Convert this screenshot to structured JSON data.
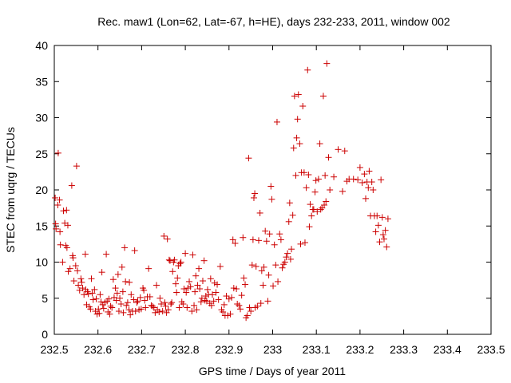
{
  "chart_data": {
    "type": "scatter",
    "title": "Rec. maw1 (Lon=62, Lat=-67, h=HE), days 232-233, 2011, window 002",
    "xlabel": "GPS time / Days of year 2011",
    "ylabel": "STEC from uqrg / TECUs",
    "xlim": [
      232.5,
      233.5
    ],
    "ylim": [
      0,
      40
    ],
    "xticks": [
      232.5,
      232.6,
      232.7,
      232.8,
      232.9,
      233,
      233.1,
      233.2,
      233.3,
      233.4,
      233.5
    ],
    "xtick_labels": [
      "232.5",
      "232.6",
      "232.7",
      "232.8",
      "232.9",
      "233",
      "233.1",
      "233.2",
      "233.3",
      "233.4",
      "233.5"
    ],
    "yticks": [
      0,
      5,
      10,
      15,
      20,
      25,
      30,
      35,
      40
    ],
    "ytick_labels": [
      "0",
      "5",
      "10",
      "15",
      "20",
      "25",
      "30",
      "35",
      "40"
    ],
    "grid": false,
    "marker": "+",
    "color": "#cc0000",
    "series": [
      {
        "name": "STEC",
        "points": [
          [
            232.502,
            18.9
          ],
          [
            232.503,
            15.3
          ],
          [
            232.504,
            14.6
          ],
          [
            232.508,
            17.9
          ],
          [
            232.509,
            25.1
          ],
          [
            232.512,
            18.6
          ],
          [
            232.513,
            14.2
          ],
          [
            232.514,
            12.4
          ],
          [
            232.519,
            10.0
          ],
          [
            232.521,
            17.1
          ],
          [
            232.524,
            15.4
          ],
          [
            232.526,
            12.3
          ],
          [
            232.528,
            17.2
          ],
          [
            232.529,
            12.0
          ],
          [
            232.531,
            15.1
          ],
          [
            232.532,
            8.7
          ],
          [
            232.536,
            9.1
          ],
          [
            232.54,
            20.6
          ],
          [
            232.542,
            10.9
          ],
          [
            232.543,
            10.6
          ],
          [
            232.545,
            7.4
          ],
          [
            232.549,
            9.5
          ],
          [
            232.551,
            23.3
          ],
          [
            232.553,
            8.8
          ],
          [
            232.555,
            6.8
          ],
          [
            232.558,
            6.1
          ],
          [
            232.561,
            7.7
          ],
          [
            232.563,
            7.2
          ],
          [
            232.565,
            6.4
          ],
          [
            232.568,
            5.5
          ],
          [
            232.571,
            11.1
          ],
          [
            232.572,
            6.2
          ],
          [
            232.574,
            4.1
          ],
          [
            232.576,
            5.9
          ],
          [
            232.578,
            5.6
          ],
          [
            232.58,
            3.8
          ],
          [
            232.583,
            3.5
          ],
          [
            232.585,
            7.7
          ],
          [
            232.587,
            5.7
          ],
          [
            232.589,
            4.8
          ],
          [
            232.592,
            6.2
          ],
          [
            232.594,
            3.2
          ],
          [
            232.596,
            4.9
          ],
          [
            232.598,
            2.8
          ],
          [
            232.601,
            3.5
          ],
          [
            232.603,
            2.9
          ],
          [
            232.605,
            5.5
          ],
          [
            232.607,
            4.5
          ],
          [
            232.609,
            8.6
          ],
          [
            232.611,
            4.1
          ],
          [
            232.613,
            3.6
          ],
          [
            232.616,
            4.4
          ],
          [
            232.619,
            11.1
          ],
          [
            232.621,
            4.6
          ],
          [
            232.623,
            3.1
          ],
          [
            232.625,
            4.9
          ],
          [
            232.627,
            2.8
          ],
          [
            232.629,
            3.9
          ],
          [
            232.632,
            3.7
          ],
          [
            232.635,
            7.6
          ],
          [
            232.637,
            5.1
          ],
          [
            232.64,
            6.4
          ],
          [
            232.642,
            4.7
          ],
          [
            232.644,
            5.7
          ],
          [
            232.646,
            8.3
          ],
          [
            232.648,
            3.2
          ],
          [
            232.65,
            5.0
          ],
          [
            232.653,
            4.2
          ],
          [
            232.655,
            9.3
          ],
          [
            232.657,
            5.9
          ],
          [
            232.658,
            3.0
          ],
          [
            232.661,
            12.0
          ],
          [
            232.663,
            7.3
          ],
          [
            232.665,
            4.0
          ],
          [
            232.668,
            4.4
          ],
          [
            232.671,
            3.4
          ],
          [
            232.672,
            7.2
          ],
          [
            232.674,
            2.7
          ],
          [
            232.676,
            5.5
          ],
          [
            232.679,
            3.2
          ],
          [
            232.682,
            4.8
          ],
          [
            232.684,
            11.6
          ],
          [
            232.686,
            3.2
          ],
          [
            232.689,
            4.4
          ],
          [
            232.691,
            4.6
          ],
          [
            232.694,
            3.4
          ],
          [
            232.697,
            5.1
          ],
          [
            232.699,
            3.5
          ],
          [
            232.703,
            6.4
          ],
          [
            232.705,
            6.1
          ],
          [
            232.707,
            4.7
          ],
          [
            232.709,
            3.7
          ],
          [
            232.713,
            5.2
          ],
          [
            232.716,
            9.1
          ],
          [
            232.719,
            5.2
          ],
          [
            232.722,
            4.0
          ],
          [
            232.725,
            3.9
          ],
          [
            232.728,
            3.7
          ],
          [
            232.731,
            3.0
          ],
          [
            232.734,
            6.8
          ],
          [
            232.736,
            3.4
          ],
          [
            232.74,
            3.1
          ],
          [
            232.742,
            5.0
          ],
          [
            232.745,
            4.2
          ],
          [
            232.748,
            3.2
          ],
          [
            232.751,
            13.6
          ],
          [
            232.753,
            4.4
          ],
          [
            232.755,
            3.9
          ],
          [
            232.757,
            3.0
          ],
          [
            232.759,
            13.2
          ],
          [
            232.761,
            3.4
          ],
          [
            232.763,
            10.3
          ],
          [
            232.765,
            10.2
          ],
          [
            232.767,
            4.2
          ],
          [
            232.769,
            4.4
          ],
          [
            232.771,
            8.7
          ],
          [
            232.773,
            10.0
          ],
          [
            232.775,
            10.3
          ],
          [
            232.778,
            7.0
          ],
          [
            232.78,
            5.8
          ],
          [
            232.782,
            7.8
          ],
          [
            232.784,
            9.5
          ],
          [
            232.786,
            3.7
          ],
          [
            232.788,
            9.8
          ],
          [
            232.79,
            10.0
          ],
          [
            232.792,
            4.5
          ],
          [
            232.795,
            4.2
          ],
          [
            232.797,
            6.3
          ],
          [
            232.8,
            11.2
          ],
          [
            232.802,
            5.8
          ],
          [
            232.804,
            3.7
          ],
          [
            232.806,
            6.4
          ],
          [
            232.809,
            7.3
          ],
          [
            232.812,
            6.6
          ],
          [
            232.815,
            3.2
          ],
          [
            232.817,
            11.0
          ],
          [
            232.82,
            4.0
          ],
          [
            232.822,
            5.9
          ],
          [
            232.824,
            8.1
          ],
          [
            232.826,
            3.4
          ],
          [
            232.828,
            6.8
          ],
          [
            232.831,
            9.1
          ],
          [
            232.833,
            6.3
          ],
          [
            232.836,
            4.5
          ],
          [
            232.838,
            5.0
          ],
          [
            232.84,
            7.4
          ],
          [
            232.843,
            10.2
          ],
          [
            232.845,
            4.7
          ],
          [
            232.847,
            5.3
          ],
          [
            232.849,
            4.6
          ],
          [
            232.851,
            6.2
          ],
          [
            232.853,
            5.5
          ],
          [
            232.856,
            4.3
          ],
          [
            232.858,
            7.7
          ],
          [
            232.86,
            4.0
          ],
          [
            232.862,
            5.5
          ],
          [
            232.865,
            4.6
          ],
          [
            232.867,
            7.1
          ],
          [
            232.87,
            5.8
          ],
          [
            232.873,
            6.9
          ],
          [
            232.876,
            4.8
          ],
          [
            232.88,
            9.4
          ],
          [
            232.883,
            3.4
          ],
          [
            232.886,
            3.1
          ],
          [
            232.889,
            4.1
          ],
          [
            232.891,
            2.6
          ],
          [
            232.894,
            5.3
          ],
          [
            232.897,
            2.6
          ],
          [
            232.9,
            4.9
          ],
          [
            232.903,
            2.8
          ],
          [
            232.906,
            5.1
          ],
          [
            232.909,
            13.1
          ],
          [
            232.911,
            6.4
          ],
          [
            232.914,
            12.6
          ],
          [
            232.917,
            6.3
          ],
          [
            232.919,
            4.2
          ],
          [
            232.923,
            4.0
          ],
          [
            232.926,
            3.5
          ],
          [
            232.929,
            5.4
          ],
          [
            232.932,
            13.4
          ],
          [
            232.934,
            7.8
          ],
          [
            232.937,
            6.9
          ],
          [
            232.939,
            2.3
          ],
          [
            232.942,
            2.6
          ],
          [
            232.945,
            24.4
          ],
          [
            232.947,
            3.7
          ],
          [
            232.95,
            3.2
          ],
          [
            232.953,
            9.6
          ],
          [
            232.955,
            13.1
          ],
          [
            232.957,
            18.9
          ],
          [
            232.959,
            19.5
          ],
          [
            232.96,
            3.7
          ],
          [
            232.962,
            9.4
          ],
          [
            232.965,
            3.9
          ],
          [
            232.968,
            13.0
          ],
          [
            232.971,
            16.8
          ],
          [
            232.973,
            4.3
          ],
          [
            232.975,
            8.8
          ],
          [
            232.978,
            6.8
          ],
          [
            232.98,
            9.3
          ],
          [
            232.983,
            14.3
          ],
          [
            232.986,
            12.9
          ],
          [
            232.989,
            4.6
          ],
          [
            232.991,
            8.2
          ],
          [
            232.993,
            13.9
          ],
          [
            232.996,
            20.5
          ],
          [
            232.998,
            18.7
          ],
          [
            233.001,
            6.7
          ],
          [
            233.004,
            12.4
          ],
          [
            233.007,
            9.6
          ],
          [
            233.01,
            29.4
          ],
          [
            233.012,
            7.3
          ],
          [
            233.016,
            13.9
          ],
          [
            233.019,
            13.1
          ],
          [
            233.022,
            9.2
          ],
          [
            233.025,
            9.7
          ],
          [
            233.028,
            10.0
          ],
          [
            233.031,
            10.7
          ],
          [
            233.034,
            11.2
          ],
          [
            233.037,
            15.6
          ],
          [
            233.039,
            18.2
          ],
          [
            233.041,
            10.4
          ],
          [
            233.043,
            11.8
          ],
          [
            233.046,
            16.5
          ],
          [
            233.048,
            25.8
          ],
          [
            233.05,
            33.0
          ],
          [
            233.053,
            22.0
          ],
          [
            233.055,
            27.2
          ],
          [
            233.057,
            29.8
          ],
          [
            233.059,
            33.2
          ],
          [
            233.062,
            26.4
          ],
          [
            233.064,
            12.5
          ],
          [
            233.066,
            22.4
          ],
          [
            233.069,
            31.6
          ],
          [
            233.072,
            22.4
          ],
          [
            233.074,
            12.7
          ],
          [
            233.077,
            20.3
          ],
          [
            233.08,
            36.6
          ],
          [
            233.082,
            22.1
          ],
          [
            233.084,
            14.9
          ],
          [
            233.086,
            18.0
          ],
          [
            233.089,
            16.4
          ],
          [
            233.092,
            17.3
          ],
          [
            233.094,
            17.3
          ],
          [
            233.097,
            19.7
          ],
          [
            233.099,
            21.3
          ],
          [
            233.102,
            17.0
          ],
          [
            233.105,
            21.5
          ],
          [
            233.108,
            26.4
          ],
          [
            233.11,
            17.3
          ],
          [
            233.113,
            17.5
          ],
          [
            233.116,
            33.0
          ],
          [
            233.118,
            17.9
          ],
          [
            233.12,
            22.0
          ],
          [
            233.122,
            18.4
          ],
          [
            233.124,
            37.5
          ],
          [
            233.128,
            24.5
          ],
          [
            233.131,
            20.0
          ],
          [
            233.14,
            21.8
          ],
          [
            233.15,
            25.6
          ],
          [
            233.16,
            19.8
          ],
          [
            233.165,
            25.4
          ],
          [
            233.17,
            21.2
          ],
          [
            233.175,
            21.5
          ],
          [
            233.185,
            21.5
          ],
          [
            233.195,
            21.4
          ],
          [
            233.2,
            23.1
          ],
          [
            233.205,
            21.0
          ],
          [
            233.21,
            22.2
          ],
          [
            233.213,
            18.8
          ],
          [
            233.216,
            21.1
          ],
          [
            233.219,
            20.3
          ],
          [
            233.221,
            22.6
          ],
          [
            233.224,
            16.4
          ],
          [
            233.227,
            21.1
          ],
          [
            233.23,
            20.0
          ],
          [
            233.233,
            16.4
          ],
          [
            233.236,
            14.2
          ],
          [
            233.239,
            16.4
          ],
          [
            233.242,
            15.1
          ],
          [
            233.245,
            12.8
          ],
          [
            233.248,
            21.4
          ],
          [
            233.251,
            16.2
          ],
          [
            233.253,
            13.8
          ],
          [
            233.255,
            13.2
          ],
          [
            233.258,
            14.4
          ],
          [
            233.261,
            12.1
          ],
          [
            233.264,
            16.0
          ]
        ]
      }
    ]
  }
}
